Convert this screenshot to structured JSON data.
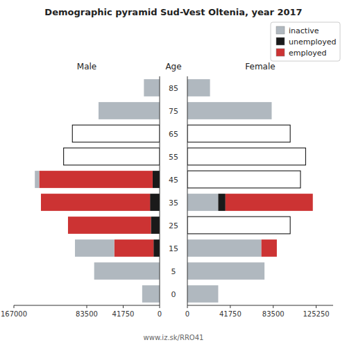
{
  "chart_data": [
    {
      "type": "bar",
      "orientation": "horizontal",
      "stacked": true,
      "grid": false,
      "title": "Demographic pyramid Sud-Vest Oltenia, year 2017",
      "subtitle": "Male",
      "ylabel": "Age",
      "annotations": [
        "www.iz.sk/RRO41"
      ],
      "categories": [
        0,
        5,
        15,
        25,
        35,
        45,
        55,
        65,
        75,
        85
      ],
      "xlim": [
        167000,
        0
      ],
      "xticks": [
        167000,
        83500,
        41750,
        0
      ],
      "series": [
        {
          "color": "#1a1a1a",
          "values": [
            0,
            0,
            7000,
            10000,
            11000,
            8000,
            null,
            null,
            0,
            0
          ]
        },
        {
          "color": "#cc3333",
          "values": [
            0,
            0,
            45000,
            95000,
            125000,
            130000,
            null,
            null,
            0,
            0
          ]
        },
        {
          "color": "#b0b8bf",
          "values": [
            20000,
            75000,
            45000,
            0,
            0,
            5000,
            null,
            null,
            70000,
            18000
          ]
        },
        {
          "color": "#ffffff",
          "values": [
            null,
            null,
            null,
            null,
            null,
            null,
            110000,
            100000,
            null,
            null
          ]
        }
      ]
    },
    {
      "type": "bar",
      "orientation": "horizontal",
      "stacked": true,
      "grid": false,
      "subtitle": "Female",
      "legend": "upper right",
      "tick_labels": "x",
      "xlim": [
        0,
        141750
      ],
      "xticks": [
        0,
        41750,
        83500,
        125250
      ],
      "series": [
        {
          "name": "inactive",
          "color": "#b0b8bf",
          "values": [
            30000,
            75000,
            72000,
            null,
            30000,
            null,
            null,
            null,
            82000,
            22000
          ]
        },
        {
          "name": "unemployed",
          "color": "#1a1a1a",
          "values": [
            0,
            0,
            0,
            null,
            7000,
            null,
            null,
            null,
            0,
            0
          ]
        },
        {
          "name": "employed",
          "color": "#cc3333",
          "values": [
            0,
            0,
            15000,
            null,
            85000,
            null,
            null,
            null,
            0,
            0
          ]
        },
        {
          "color": "#ffffff",
          "values": [
            null,
            null,
            null,
            100000,
            null,
            110000,
            115000,
            100000,
            null,
            null
          ]
        }
      ]
    }
  ]
}
